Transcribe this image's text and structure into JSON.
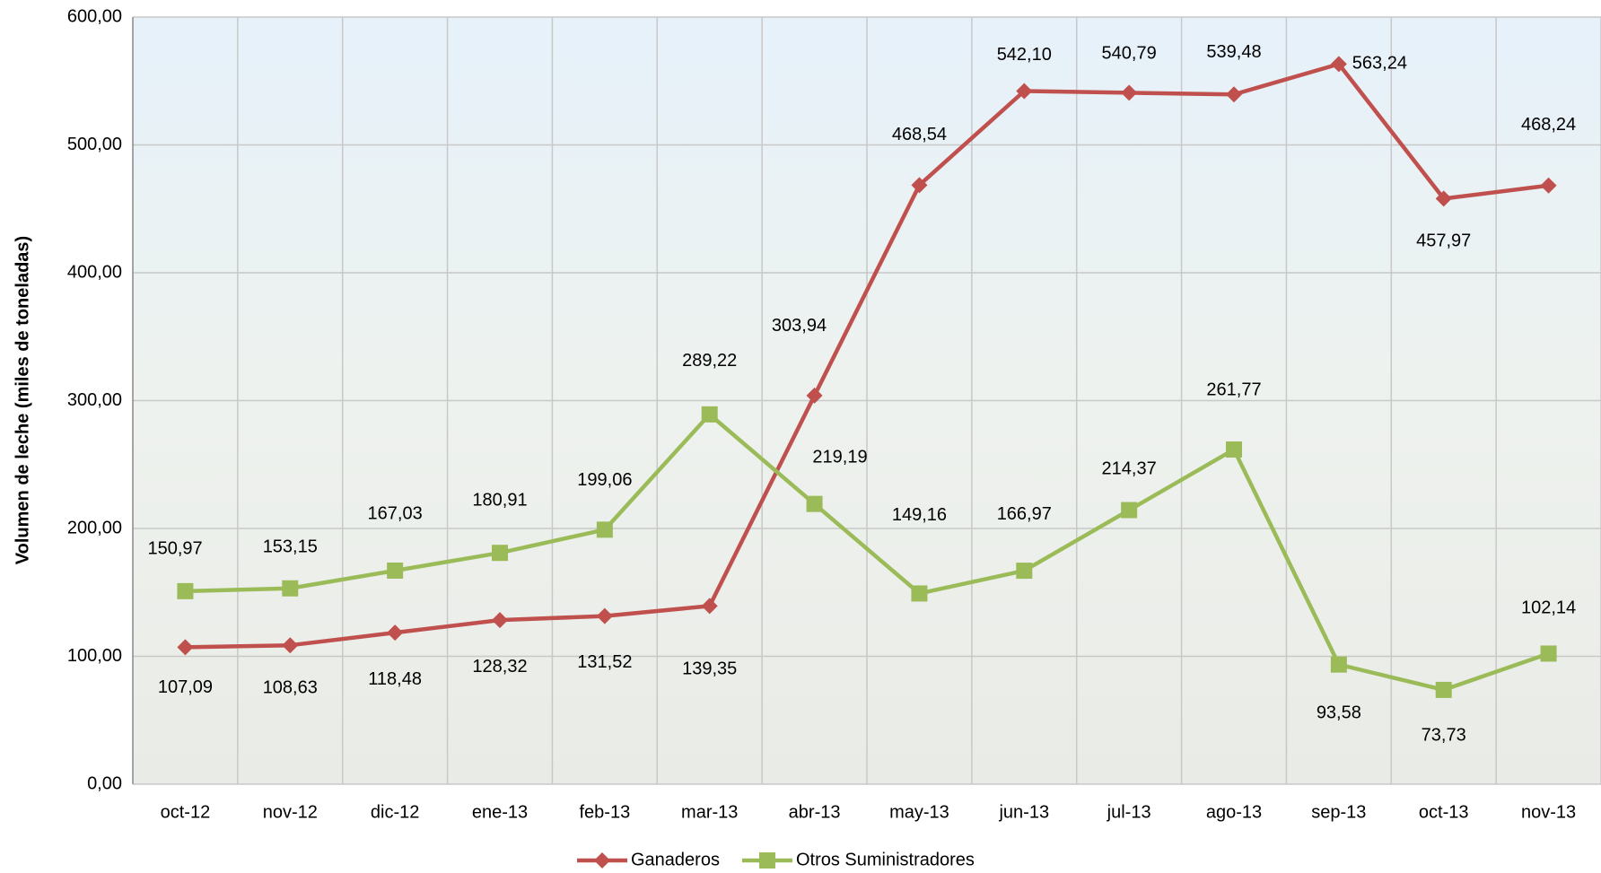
{
  "chart_data": {
    "type": "line",
    "y_label": "Volumen de leche (miles de toneladas)",
    "categories": [
      "oct-12",
      "nov-12",
      "dic-12",
      "ene-13",
      "feb-13",
      "mar-13",
      "abr-13",
      "may-13",
      "jun-13",
      "jul-13",
      "ago-13",
      "sep-13",
      "oct-13",
      "nov-13"
    ],
    "series": [
      {
        "name": "Ganaderos",
        "color": "#c0504d",
        "values": [
          107.09,
          108.63,
          118.48,
          128.32,
          131.52,
          139.35,
          303.94,
          468.54,
          542.1,
          540.79,
          539.48,
          563.24,
          457.97,
          468.24
        ],
        "value_labels": [
          "107,09",
          "108,63",
          "118,48",
          "128,32",
          "131,52",
          "139,35",
          "303,94",
          "468,54",
          "542,10",
          "540,79",
          "539,48",
          "563,24",
          "457,97",
          "468,24"
        ]
      },
      {
        "name": "Otros Suministradores",
        "color": "#9bbb59",
        "values": [
          150.97,
          153.15,
          167.03,
          180.91,
          199.06,
          289.22,
          219.19,
          149.16,
          166.97,
          214.37,
          261.77,
          93.58,
          73.73,
          102.14
        ],
        "value_labels": [
          "150,97",
          "153,15",
          "167,03",
          "180,91",
          "199,06",
          "289,22",
          "219,19",
          "149,16",
          "166,97",
          "214,37",
          "261,77",
          "93,58",
          "73,73",
          "102,14"
        ]
      }
    ],
    "ylim": [
      0,
      600
    ],
    "yticks": [
      {
        "value": 0,
        "label": "0,00"
      },
      {
        "value": 100,
        "label": "100,00"
      },
      {
        "value": 200,
        "label": "200,00"
      },
      {
        "value": 300,
        "label": "300,00"
      },
      {
        "value": 400,
        "label": "400,00"
      },
      {
        "value": 500,
        "label": "500,00"
      },
      {
        "value": 600,
        "label": "600,00"
      }
    ],
    "grid": true,
    "legend": "bottom"
  }
}
